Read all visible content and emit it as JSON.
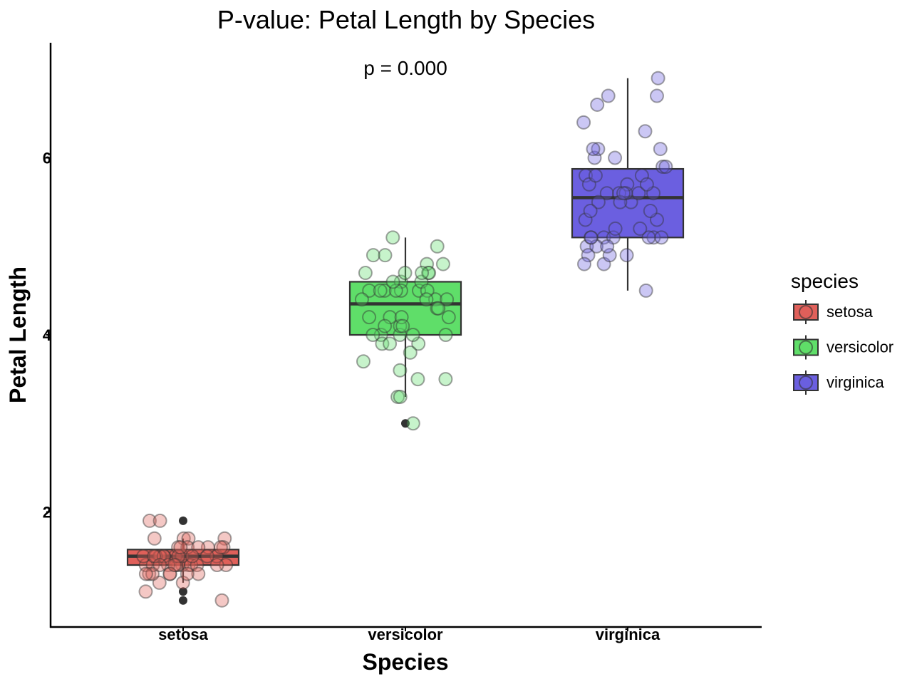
{
  "chart_data": {
    "type": "boxplot",
    "title": "P-value: Petal Length by Species",
    "annotation": "p = 0.000",
    "xlabel": "Species",
    "ylabel": "Petal Length",
    "categories": [
      "setosa",
      "versicolor",
      "virginica"
    ],
    "ylim": [
      0.7,
      7.3
    ],
    "yticks": [
      2,
      4,
      6
    ],
    "grid": false,
    "legend": {
      "title": "species",
      "position": "right",
      "entries": [
        "setosa",
        "versicolor",
        "virginica"
      ]
    },
    "colors": {
      "setosa": "#e0605a",
      "versicolor": "#5fde69",
      "virginica": "#6b5fe0"
    },
    "series": [
      {
        "name": "setosa",
        "box": {
          "q1": 1.4,
          "median": 1.5,
          "q3": 1.575,
          "whisker_low": 1.2,
          "whisker_high": 1.7
        },
        "outliers": [
          1.0,
          1.1,
          1.9
        ],
        "points": [
          1.4,
          1.4,
          1.3,
          1.5,
          1.4,
          1.7,
          1.4,
          1.5,
          1.4,
          1.5,
          1.5,
          1.6,
          1.4,
          1.1,
          1.2,
          1.5,
          1.3,
          1.4,
          1.7,
          1.5,
          1.7,
          1.5,
          1.0,
          1.7,
          1.9,
          1.6,
          1.6,
          1.5,
          1.4,
          1.6,
          1.6,
          1.5,
          1.5,
          1.4,
          1.5,
          1.2,
          1.3,
          1.4,
          1.3,
          1.5,
          1.3,
          1.3,
          1.3,
          1.6,
          1.9,
          1.4,
          1.6,
          1.4,
          1.5,
          1.4
        ]
      },
      {
        "name": "versicolor",
        "box": {
          "q1": 4.0,
          "median": 4.35,
          "q3": 4.6,
          "whisker_low": 3.3,
          "whisker_high": 5.1
        },
        "outliers": [
          3.0
        ],
        "points": [
          4.7,
          4.5,
          4.9,
          4.0,
          4.6,
          4.5,
          4.7,
          3.3,
          4.6,
          3.9,
          3.5,
          4.2,
          4.0,
          4.7,
          3.6,
          4.4,
          4.5,
          4.1,
          4.5,
          3.9,
          4.8,
          4.0,
          4.9,
          4.7,
          4.3,
          4.4,
          4.8,
          5.0,
          4.5,
          3.5,
          3.8,
          3.7,
          3.9,
          5.1,
          4.5,
          4.5,
          4.7,
          4.4,
          4.1,
          4.0,
          4.4,
          4.6,
          4.0,
          3.3,
          4.2,
          4.2,
          4.2,
          4.3,
          3.0,
          4.1
        ]
      },
      {
        "name": "virginica",
        "box": {
          "q1": 5.1,
          "median": 5.55,
          "q3": 5.875,
          "whisker_low": 4.5,
          "whisker_high": 6.9
        },
        "outliers": [],
        "points": [
          6.0,
          5.1,
          5.9,
          5.6,
          5.8,
          6.6,
          4.5,
          6.3,
          5.8,
          6.1,
          5.1,
          5.3,
          5.5,
          5.0,
          5.1,
          5.3,
          5.5,
          6.7,
          6.9,
          5.0,
          5.7,
          4.9,
          6.7,
          4.9,
          5.7,
          6.0,
          4.8,
          4.9,
          5.6,
          5.8,
          6.1,
          6.4,
          5.6,
          5.1,
          5.6,
          6.1,
          5.6,
          5.5,
          4.8,
          5.4,
          5.6,
          5.1,
          5.1,
          5.9,
          5.7,
          5.2,
          5.0,
          5.2,
          5.4,
          5.1
        ]
      }
    ]
  }
}
